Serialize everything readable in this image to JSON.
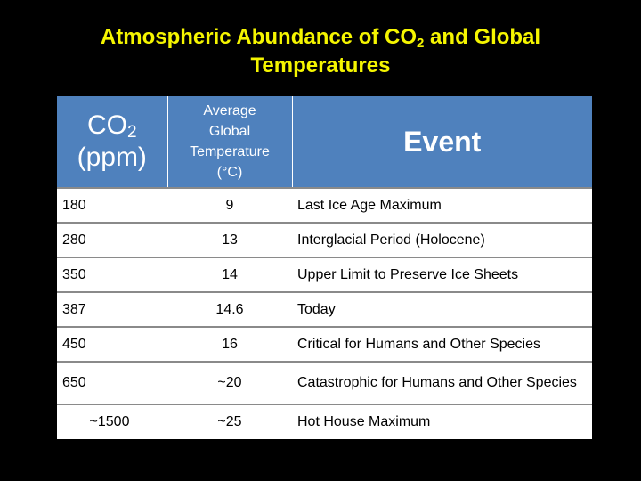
{
  "slide": {
    "title_line1_pre": "Atmospheric Abundance of CO",
    "title_line1_sub": "2",
    "title_line1_post": " and Global",
    "title_line2": "Temperatures"
  },
  "table": {
    "headers": {
      "co2_main": "CO",
      "co2_sub": "2",
      "co2_unit": "(ppm)",
      "temp_line1": "Average",
      "temp_line2": "Global",
      "temp_line3": "Temperature",
      "temp_line4": "(°C)",
      "event": "Event"
    },
    "rows": [
      {
        "co2": "180",
        "temp": "9",
        "event": "Last Ice Age Maximum"
      },
      {
        "co2": "280",
        "temp": "13",
        "event": "Interglacial Period (Holocene)"
      },
      {
        "co2": "350",
        "temp": "14",
        "event": "Upper Limit to Preserve Ice Sheets"
      },
      {
        "co2": "387",
        "temp": "14.6",
        "event": "Today"
      },
      {
        "co2": "450",
        "temp": "16",
        "event": "Critical for Humans and Other Species"
      },
      {
        "co2": "650",
        "temp": "~20",
        "event": "Catastrophic for Humans and Other Species"
      },
      {
        "co2": "~1500",
        "temp": "~25",
        "event": "Hot House Maximum"
      }
    ]
  },
  "colors": {
    "background": "#000000",
    "title": "#f5f500",
    "header_fill": "#4f81bd",
    "row_fill": "#ffffff"
  }
}
